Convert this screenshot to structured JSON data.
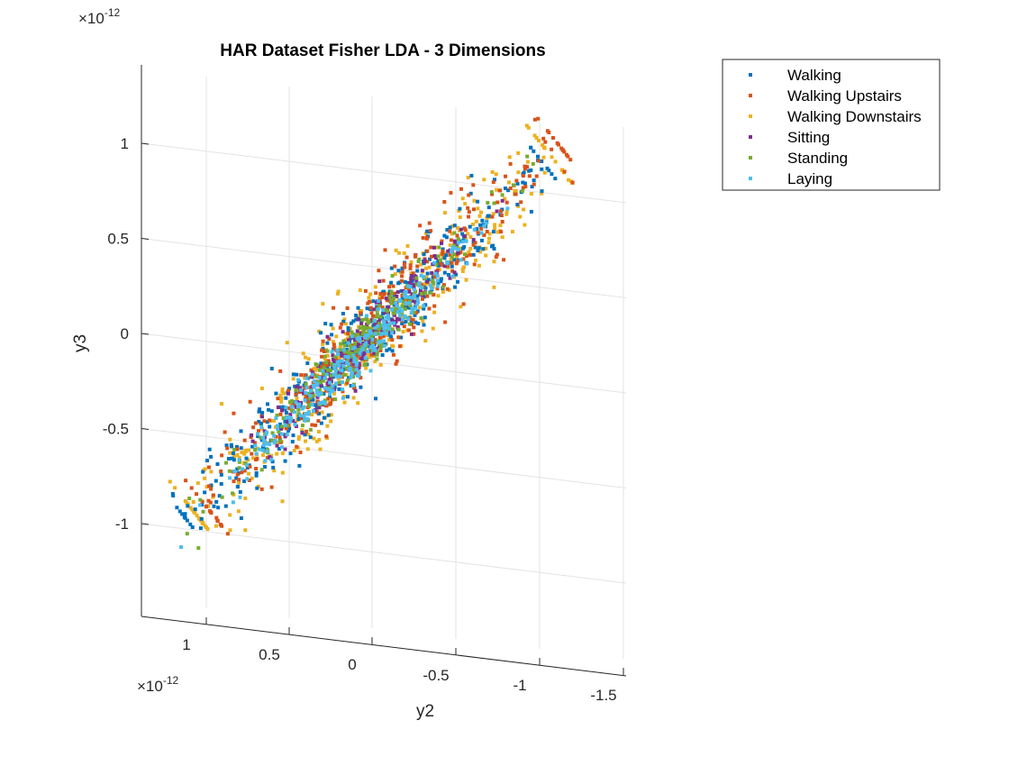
{
  "chart_data": {
    "type": "scatter",
    "projection": "3d",
    "title": "HAR Dataset Fisher LDA - 3 Dimensions",
    "xlabel": "y2",
    "ylabel": "y3",
    "x_multiplier": {
      "base": "×10",
      "exponent": "-12"
    },
    "y_multiplier": {
      "base": "×10",
      "exponent": "-12"
    },
    "x_ticks": [
      1,
      0.5,
      0,
      -0.5,
      -1,
      -1.5
    ],
    "x_tick_labels": [
      "1",
      "0.5",
      "0",
      "-0.5",
      "-1",
      "-1.5"
    ],
    "y_ticks": [
      1,
      0.5,
      0,
      -0.5,
      -1
    ],
    "y_tick_labels": [
      "1",
      "0.5",
      "0",
      "-0.5",
      "-1"
    ],
    "xlim": [
      1.35,
      -1.55
    ],
    "ylim": [
      -1.48,
      1.38
    ],
    "grid": true,
    "legend_position": "top-right outside",
    "series": [
      {
        "name": "Walking",
        "color": "#0072BD",
        "center": [
          0.05,
          -0.04
        ],
        "spread_along": 0.8,
        "spread_across": 0.08,
        "count": 420
      },
      {
        "name": "Walking Upstairs",
        "color": "#D95319",
        "center": [
          -0.05,
          0.06
        ],
        "spread_along": 0.8,
        "spread_across": 0.09,
        "count": 380
      },
      {
        "name": "Walking Downstairs",
        "color": "#EDB120",
        "center": [
          0.0,
          0.0
        ],
        "spread_along": 0.9,
        "spread_across": 0.11,
        "count": 420
      },
      {
        "name": "Sitting",
        "color": "#7E2F8E",
        "center": [
          0.05,
          -0.05
        ],
        "spread_along": 0.45,
        "spread_across": 0.05,
        "count": 220
      },
      {
        "name": "Standing",
        "color": "#77AC30",
        "center": [
          0.08,
          -0.08
        ],
        "spread_along": 0.5,
        "spread_across": 0.05,
        "count": 250
      },
      {
        "name": "Laying",
        "color": "#4DBEEE",
        "center": [
          0.12,
          -0.15
        ],
        "spread_along": 0.55,
        "spread_across": 0.05,
        "count": 260
      }
    ]
  }
}
